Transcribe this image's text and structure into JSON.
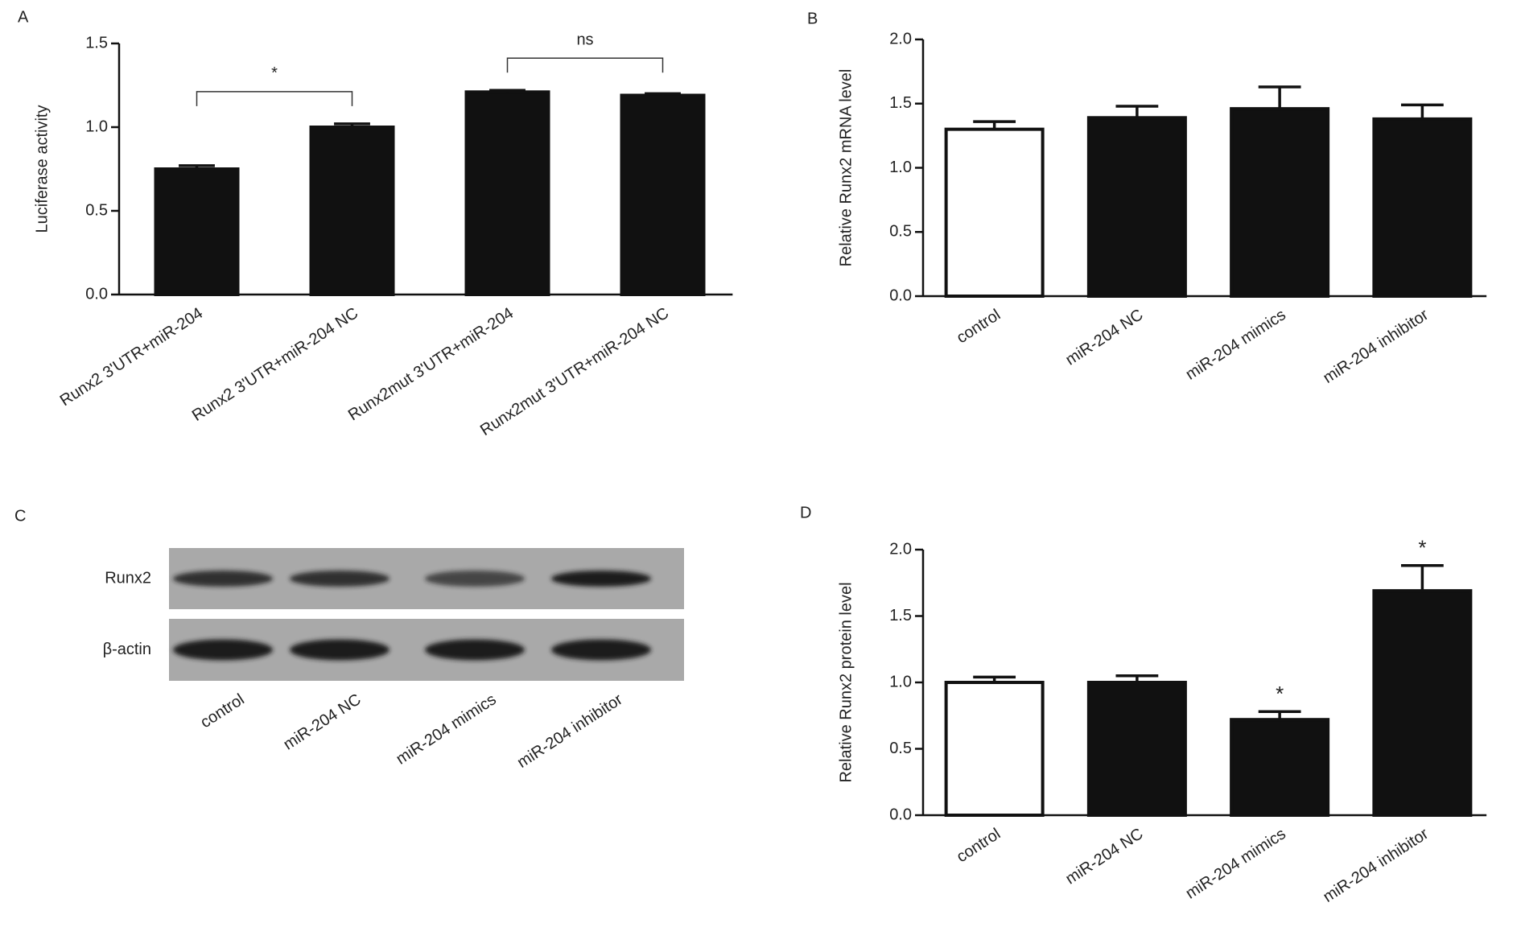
{
  "chart_data": [
    {
      "type": "bar",
      "panel": "A",
      "ylabel": "Luciferase activity",
      "categories": [
        "Runx2 3'UTR+miR-204",
        "Runx2 3'UTR+miR-204 NC",
        "Runx2mut 3'UTR+miR-204",
        "Runx2mut 3'UTR+miR-204 NC"
      ],
      "values": [
        0.75,
        1.0,
        1.21,
        1.19
      ],
      "errors": [
        0.02,
        0.02,
        0.01,
        0.01
      ],
      "colors": [
        "#111111",
        "#111111",
        "#111111",
        "#111111"
      ],
      "ylim": [
        0,
        1.5
      ],
      "yticks": [
        {
          "value": 0,
          "label": "0.0"
        },
        0.5,
        {
          "value": 1,
          "label": "1.0"
        },
        1.5
      ],
      "annotations": [
        {
          "text": "*",
          "from": 0,
          "to": 1
        },
        {
          "text": "ns",
          "from": 2,
          "to": 3
        }
      ]
    },
    {
      "type": "bar",
      "panel": "B",
      "ylabel": "Relative Runx2 mRNA level",
      "categories": [
        "control",
        "miR-204 NC",
        "miR-204 mimics",
        "miR-204 inhibitor"
      ],
      "values": [
        1.3,
        1.39,
        1.46,
        1.38
      ],
      "errors": [
        0.06,
        0.09,
        0.17,
        0.11
      ],
      "colors": [
        "#ffffff",
        "#111111",
        "#111111",
        "#111111"
      ],
      "ylim": [
        0,
        2
      ],
      "yticks": [
        {
          "value": 0,
          "label": "0.0"
        },
        0.5,
        {
          "value": 1,
          "label": "1.0"
        },
        1.5,
        {
          "value": 2,
          "label": "2.0"
        }
      ]
    },
    {
      "type": "blot",
      "panel": "C",
      "rows": [
        "Runx2",
        "β-actin"
      ],
      "categories": [
        "control",
        "miR-204 NC",
        "miR-204 mimics",
        "miR-204 inhibitor"
      ]
    },
    {
      "type": "bar",
      "panel": "D",
      "ylabel": "Relative Runx2 protein level",
      "categories": [
        "control",
        "miR-204 NC",
        "miR-204 mimics",
        "miR-204 inhibitor"
      ],
      "values": [
        1.0,
        1.0,
        0.72,
        1.69
      ],
      "errors": [
        0.04,
        0.05,
        0.06,
        0.19
      ],
      "colors": [
        "#ffffff",
        "#111111",
        "#111111",
        "#111111"
      ],
      "ylim": [
        0,
        2
      ],
      "yticks": [
        {
          "value": 0,
          "label": "0.0"
        },
        0.5,
        {
          "value": 1,
          "label": "1.0"
        },
        1.5,
        {
          "value": 2,
          "label": "2.0"
        }
      ],
      "annotations": [
        {
          "text": "*",
          "at": 2
        },
        {
          "text": "*",
          "at": 3
        }
      ]
    }
  ]
}
